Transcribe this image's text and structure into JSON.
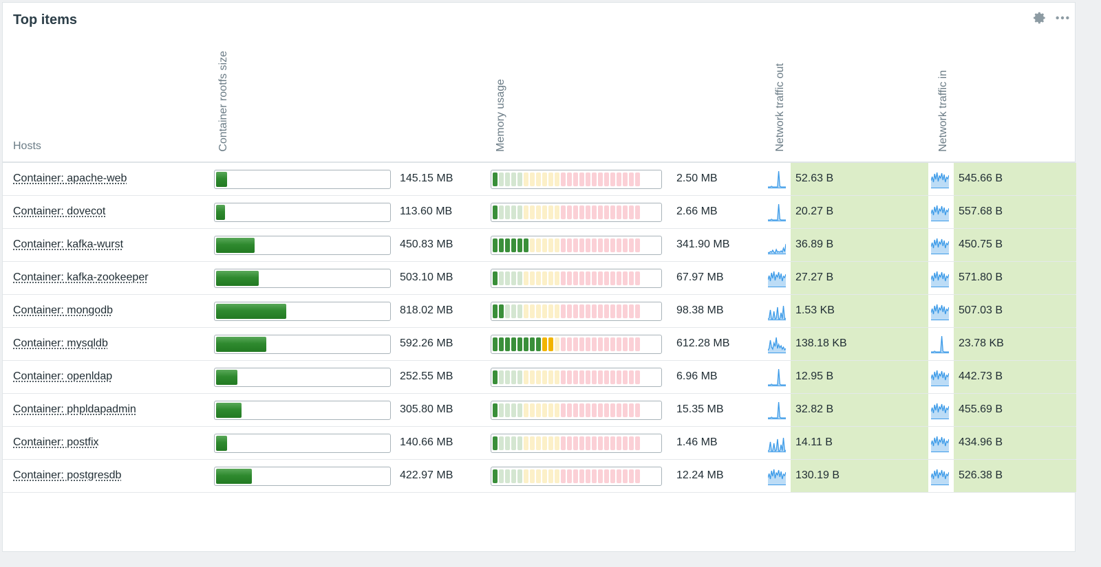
{
  "widget": {
    "title": "Top items",
    "actions": [
      {
        "name": "gear-icon"
      },
      {
        "name": "more-icon"
      }
    ]
  },
  "columns": {
    "hosts": "Hosts",
    "col1": "Container rootfs size",
    "col2": "Memory usage",
    "col3": "Network traffic out",
    "col4": "Network traffic in"
  },
  "colors": {
    "bar_green": "#2f8a2f",
    "ind_green_on": "#3a8f3a",
    "ind_green_off": "#d4e6d1",
    "ind_yellow_on": "#f2b400",
    "ind_yellow_off": "#fcf0c8",
    "ind_red_off": "#fbd0d6",
    "highlight": "#dcedc8",
    "sparkline": "#3b9ae8"
  },
  "rows": [
    {
      "host": "Container: apache-web",
      "rootfs": "145.15 MB",
      "rootfs_pct": 6.4,
      "mem": "2.50 MB",
      "mem_segments_on": 1,
      "out": "52.63 B",
      "in": "545.66 B",
      "out_shape": "spike",
      "in_shape": "busy"
    },
    {
      "host": "Container: dovecot",
      "rootfs": "113.60 MB",
      "rootfs_pct": 5.0,
      "mem": "2.66 MB",
      "mem_segments_on": 1,
      "out": "20.27 B",
      "in": "557.68 B",
      "out_shape": "spike",
      "in_shape": "busy"
    },
    {
      "host": "Container: kafka-wurst",
      "rootfs": "450.83 MB",
      "rootfs_pct": 21.8,
      "mem": "341.90 MB",
      "mem_segments_on": 6,
      "out": "36.89 B",
      "in": "450.75 B",
      "out_shape": "low",
      "in_shape": "busy"
    },
    {
      "host": "Container: kafka-zookeeper",
      "rootfs": "503.10 MB",
      "rootfs_pct": 24.2,
      "mem": "67.97 MB",
      "mem_segments_on": 1,
      "out": "27.27 B",
      "in": "571.80 B",
      "out_shape": "busy",
      "in_shape": "busy"
    },
    {
      "host": "Container: mongodb",
      "rootfs": "818.02 MB",
      "rootfs_pct": 39.9,
      "mem": "98.38 MB",
      "mem_segments_on": 2,
      "out": "1.53 KB",
      "in": "507.03 B",
      "out_shape": "bars",
      "in_shape": "busy"
    },
    {
      "host": "Container: mysqldb",
      "rootfs": "592.26 MB",
      "rootfs_pct": 28.8,
      "mem": "612.28 MB",
      "mem_segments_on": 10,
      "out": "138.18 KB",
      "in": "23.78 KB",
      "out_shape": "wave",
      "in_shape": "spike"
    },
    {
      "host": "Container: openldap",
      "rootfs": "252.55 MB",
      "rootfs_pct": 12.1,
      "mem": "6.96 MB",
      "mem_segments_on": 1,
      "out": "12.95 B",
      "in": "442.73 B",
      "out_shape": "spike",
      "in_shape": "busy"
    },
    {
      "host": "Container: phpldapadmin",
      "rootfs": "305.80 MB",
      "rootfs_pct": 14.5,
      "mem": "15.35 MB",
      "mem_segments_on": 1,
      "out": "32.82 B",
      "in": "455.69 B",
      "out_shape": "spike",
      "in_shape": "busy"
    },
    {
      "host": "Container: postfix",
      "rootfs": "140.66 MB",
      "rootfs_pct": 6.2,
      "mem": "1.46 MB",
      "mem_segments_on": 1,
      "out": "14.11 B",
      "in": "434.96 B",
      "out_shape": "bars",
      "in_shape": "busy"
    },
    {
      "host": "Container: postgresdb",
      "rootfs": "422.97 MB",
      "rootfs_pct": 20.2,
      "mem": "12.24 MB",
      "mem_segments_on": 1,
      "out": "130.19 B",
      "in": "526.38 B",
      "out_shape": "busy",
      "in_shape": "busy"
    }
  ]
}
